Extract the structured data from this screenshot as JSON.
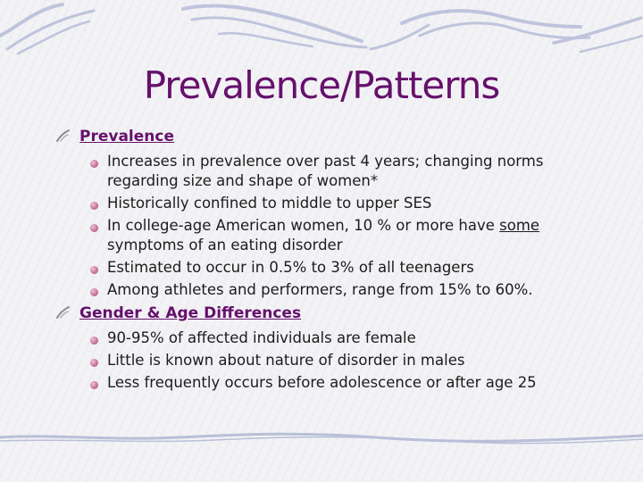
{
  "slide": {
    "title": "Prevalence/Patterns",
    "sections": [
      {
        "heading": "Prevalence",
        "items": [
          "Increases in prevalence over past 4 years; changing norms regarding size and shape of women*",
          "Historically confined to middle to upper SES",
          {
            "before": "In college-age American women, 10 % or more have ",
            "emph": "some",
            "after": " symptoms of an eating disorder"
          },
          "Estimated to occur in 0.5% to 3% of all teenagers",
          "Among athletes and performers, range from 15% to 60%."
        ]
      },
      {
        "heading": "Gender & Age Differences",
        "items": [
          "90-95% of affected individuals are female",
          "Little is known about nature of disorder in males",
          "Less frequently occurs before adolescence or after age 25"
        ]
      }
    ]
  },
  "colors": {
    "title": "#66106b",
    "heading": "#66106b",
    "body_text": "#1c1c1c",
    "decoration": "#b9bfd8",
    "bullet": "#c9769d"
  },
  "icons": {
    "level1_bullet": "quill-stroke-icon",
    "level2_bullet": "pink-dot-icon"
  }
}
